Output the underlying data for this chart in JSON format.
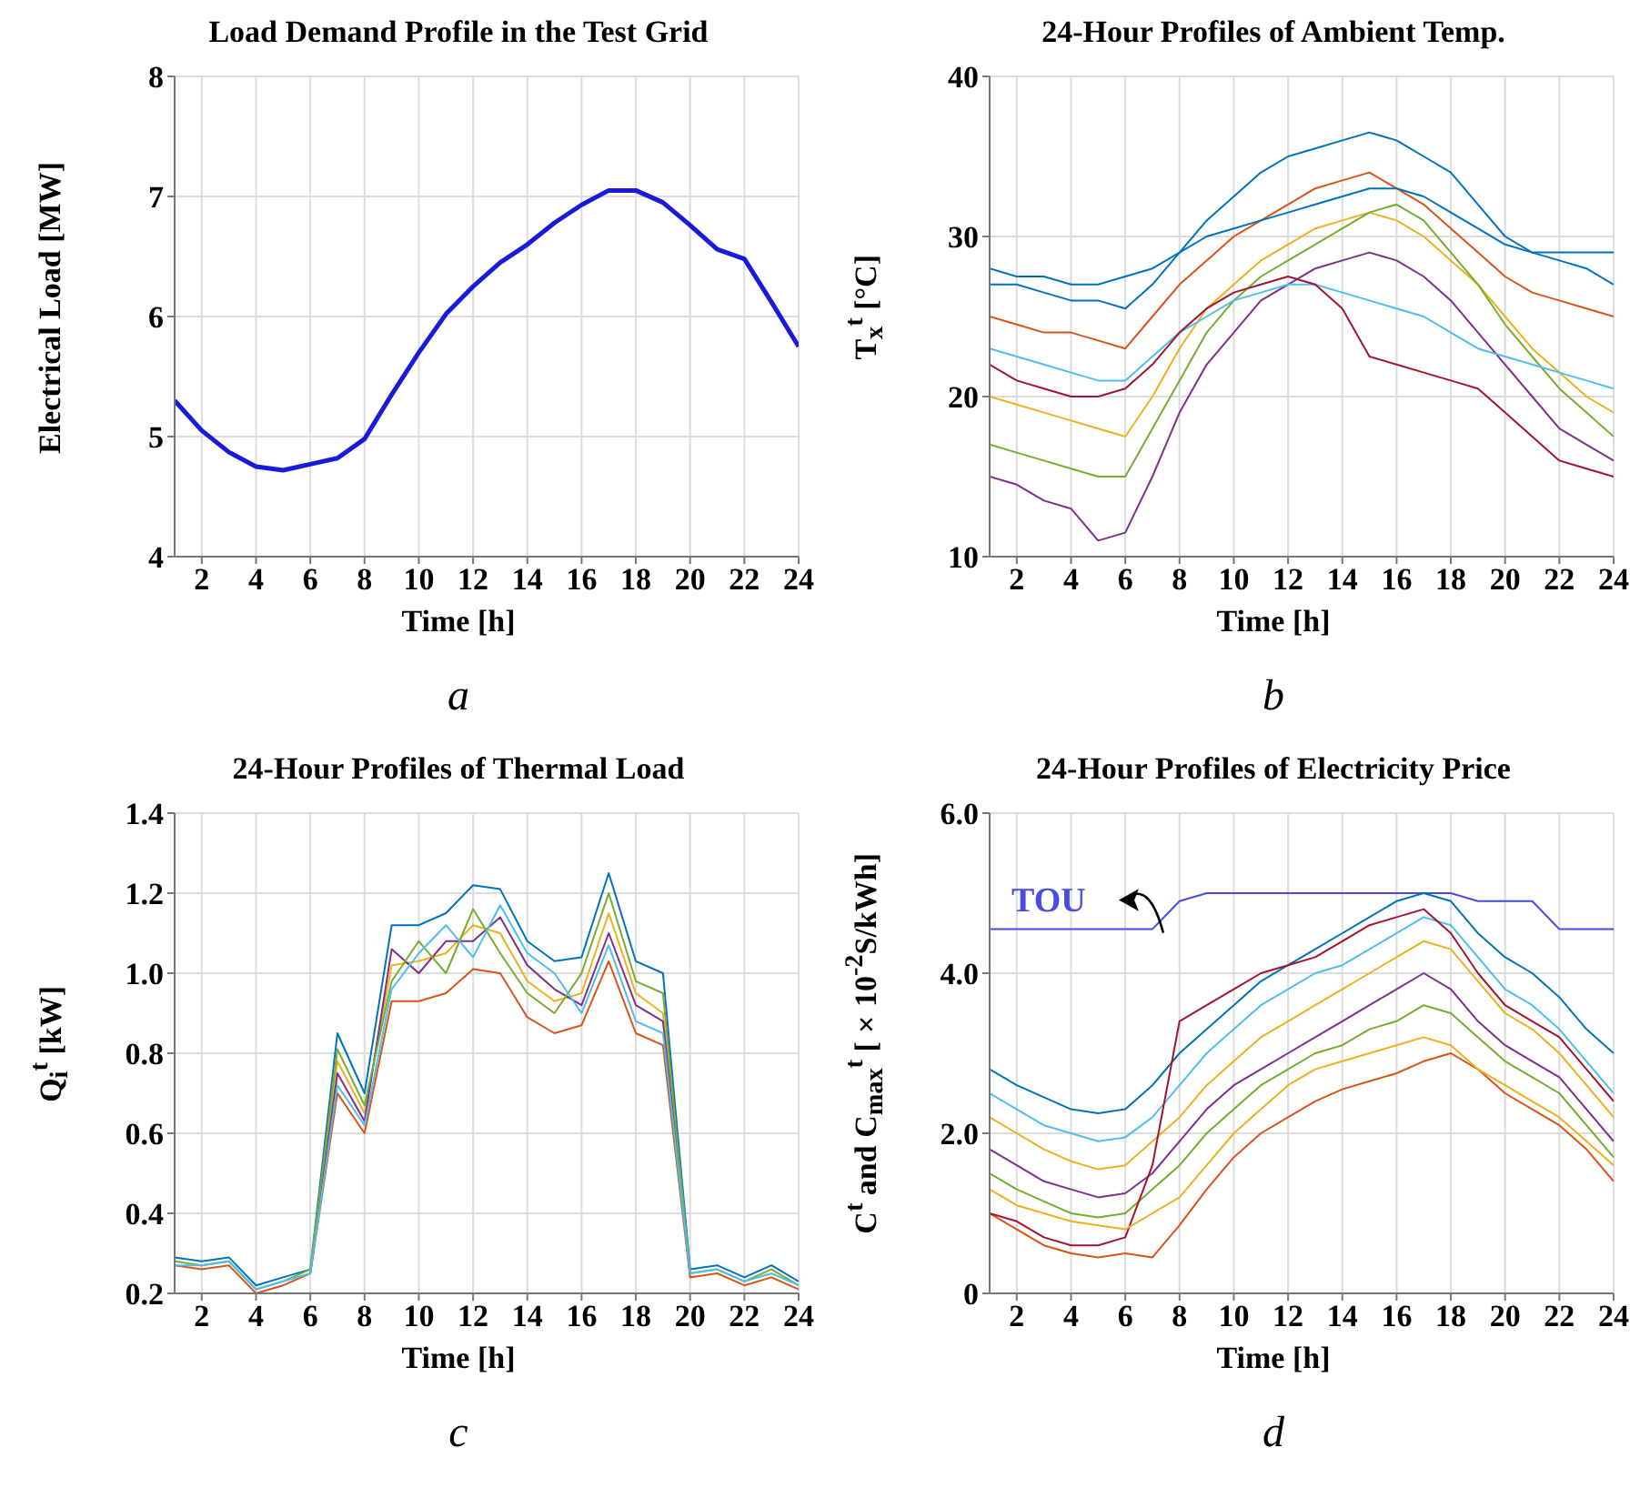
{
  "chart_data": [
    {
      "type": "line",
      "title": "Load Demand Profile in the Test Grid",
      "xlabel": "Time [h]",
      "ylabel": "Electrical Load [MW]",
      "annotations": [
        "a"
      ],
      "grid": true,
      "x": [
        1,
        2,
        3,
        4,
        5,
        6,
        7,
        8,
        9,
        10,
        11,
        12,
        13,
        14,
        15,
        16,
        17,
        18,
        19,
        20,
        21,
        22,
        23,
        24
      ],
      "xlim": [
        1,
        24
      ],
      "xticks": [
        2,
        4,
        6,
        8,
        10,
        12,
        14,
        16,
        18,
        20,
        22,
        24
      ],
      "ylim": [
        4,
        8
      ],
      "yticks": [
        4,
        5,
        6,
        7,
        8
      ],
      "series": [
        {
          "color": "#1a1adb",
          "values": [
            5.3,
            5.05,
            4.87,
            4.75,
            4.72,
            4.77,
            4.82,
            4.98,
            5.35,
            5.7,
            6.02,
            6.25,
            6.45,
            6.6,
            6.78,
            6.93,
            7.05,
            7.05,
            6.95,
            6.76,
            6.56,
            6.48,
            6.12,
            5.75
          ]
        }
      ]
    },
    {
      "type": "line",
      "title": "24-Hour Profiles of Ambient Temp.",
      "xlabel": "Time [h]",
      "ylabel": "T$_{x}$$^{t}$ [°C]",
      "annotations": [
        "b"
      ],
      "grid": true,
      "x": [
        1,
        2,
        3,
        4,
        5,
        6,
        7,
        8,
        9,
        10,
        11,
        12,
        13,
        14,
        15,
        16,
        17,
        18,
        19,
        20,
        21,
        22,
        23,
        24
      ],
      "xlim": [
        1,
        24
      ],
      "xticks": [
        2,
        4,
        6,
        8,
        10,
        12,
        14,
        16,
        18,
        20,
        22,
        24
      ],
      "ylim": [
        10,
        40
      ],
      "yticks": [
        10,
        20,
        30,
        40
      ],
      "series": [
        {
          "color": "#0072bd",
          "values": [
            27,
            27,
            26.5,
            26,
            26,
            25.5,
            27,
            29,
            31,
            32.5,
            34,
            35,
            35.5,
            36,
            36.5,
            36,
            35,
            34,
            32,
            30,
            29,
            28.5,
            28,
            27
          ]
        },
        {
          "color": "#d95319",
          "values": [
            25,
            24.5,
            24,
            24,
            23.5,
            23,
            25,
            27,
            28.5,
            30,
            31,
            32,
            33,
            33.5,
            34,
            33,
            32,
            30.5,
            29,
            27.5,
            26.5,
            26,
            25.5,
            25
          ]
        },
        {
          "color": "#edb120",
          "values": [
            20,
            19.5,
            19,
            18.5,
            18,
            17.5,
            20,
            23,
            25.5,
            27,
            28.5,
            29.5,
            30.5,
            31,
            31.5,
            31,
            30,
            28.5,
            27,
            25,
            23,
            21.5,
            20,
            19
          ]
        },
        {
          "color": "#7e2f8e",
          "values": [
            15,
            14.5,
            13.5,
            13,
            11,
            11.5,
            15,
            19,
            22,
            24,
            26,
            27,
            28,
            28.5,
            29,
            28.5,
            27.5,
            26,
            24,
            22,
            20,
            18,
            17,
            16
          ]
        },
        {
          "color": "#77ac30",
          "values": [
            17,
            16.5,
            16,
            15.5,
            15,
            15,
            18,
            21,
            24,
            26,
            27.5,
            28.5,
            29.5,
            30.5,
            31.5,
            32,
            31,
            29,
            27,
            24.5,
            22.5,
            20.5,
            19,
            17.5
          ]
        },
        {
          "color": "#4dbeee",
          "values": [
            23,
            22.5,
            22,
            21.5,
            21,
            21,
            22.5,
            24,
            25,
            26,
            26.5,
            27,
            27,
            26.5,
            26,
            25.5,
            25,
            24,
            23,
            22.5,
            22,
            21.5,
            21,
            20.5
          ]
        },
        {
          "color": "#a2142f",
          "values": [
            22,
            21,
            20.5,
            20,
            20,
            20.5,
            22,
            24,
            25.5,
            26.5,
            27,
            27.5,
            27,
            25.5,
            22.5,
            22,
            21.5,
            21,
            20.5,
            19,
            17.5,
            16,
            15.5,
            15
          ]
        },
        {
          "color": "#0072bd",
          "values": [
            28,
            27.5,
            27.5,
            27,
            27,
            27.5,
            28,
            29,
            30,
            30.5,
            31,
            31.5,
            32,
            32.5,
            33,
            33,
            32.5,
            31.5,
            30.5,
            29.5,
            29,
            29,
            29,
            29
          ]
        }
      ]
    },
    {
      "type": "line",
      "title": "24-Hour Profiles of Thermal Load",
      "xlabel": "Time [h]",
      "ylabel": "Q$_{i}$$^{t}$ [kW]",
      "annotations": [
        "c"
      ],
      "grid": true,
      "x": [
        1,
        2,
        3,
        4,
        5,
        6,
        7,
        8,
        9,
        10,
        11,
        12,
        13,
        14,
        15,
        16,
        17,
        18,
        19,
        20,
        21,
        22,
        23,
        24
      ],
      "xlim": [
        1,
        24
      ],
      "xticks": [
        2,
        4,
        6,
        8,
        10,
        12,
        14,
        16,
        18,
        20,
        22,
        24
      ],
      "ylim": [
        0.2,
        1.4
      ],
      "yticks": [
        0.2,
        0.4,
        0.6,
        0.8,
        {
          "value": 1,
          "label": "1.0"
        },
        1.2,
        1.4
      ],
      "series": [
        {
          "color": "#0072bd",
          "values": [
            0.29,
            0.28,
            0.29,
            0.22,
            0.24,
            0.26,
            0.85,
            0.7,
            1.12,
            1.12,
            1.15,
            1.22,
            1.21,
            1.08,
            1.03,
            1.04,
            1.25,
            1.03,
            1.0,
            0.26,
            0.27,
            0.24,
            0.27,
            0.23
          ]
        },
        {
          "color": "#d95319",
          "values": [
            0.27,
            0.26,
            0.27,
            0.2,
            0.22,
            0.25,
            0.7,
            0.6,
            0.93,
            0.93,
            0.95,
            1.01,
            1.0,
            0.89,
            0.85,
            0.87,
            1.03,
            0.85,
            0.82,
            0.24,
            0.25,
            0.22,
            0.24,
            0.21
          ]
        },
        {
          "color": "#edb120",
          "values": [
            null,
            null,
            null,
            null,
            null,
            0.26,
            0.78,
            0.65,
            1.02,
            1.03,
            1.05,
            1.12,
            1.1,
            0.98,
            0.93,
            0.95,
            1.15,
            0.95,
            0.9,
            0.25,
            null,
            null,
            null,
            null
          ]
        },
        {
          "color": "#7e2f8e",
          "values": [
            null,
            null,
            null,
            null,
            null,
            0.25,
            0.75,
            0.63,
            1.06,
            1.0,
            1.08,
            1.08,
            1.14,
            1.02,
            0.96,
            0.92,
            1.1,
            0.92,
            0.88,
            0.25,
            null,
            null,
            null,
            null
          ]
        },
        {
          "color": "#77ac30",
          "values": [
            0.28,
            0.27,
            0.28,
            0.21,
            0.23,
            0.26,
            0.81,
            0.67,
            0.98,
            1.08,
            1.0,
            1.16,
            1.05,
            0.95,
            0.9,
            1.0,
            1.2,
            0.98,
            0.95,
            0.25,
            0.26,
            0.23,
            0.26,
            0.22
          ]
        },
        {
          "color": "#4dbeee",
          "values": [
            0.27,
            0.27,
            0.28,
            0.21,
            0.23,
            0.25,
            0.72,
            0.62,
            0.96,
            1.05,
            1.12,
            1.04,
            1.17,
            1.05,
            1.0,
            0.9,
            1.07,
            0.88,
            0.85,
            0.25,
            0.26,
            0.23,
            0.25,
            0.22
          ]
        }
      ]
    },
    {
      "type": "line",
      "title": "24-Hour Profiles of Electricity Price",
      "xlabel": "Time [h]",
      "ylabel": "C$^{t}$ and C$_{max}$$^{t}$ [×10$^{-2}$S/kWh]",
      "annotations": [
        "d"
      ],
      "grid": true,
      "x": [
        1,
        2,
        3,
        4,
        5,
        6,
        7,
        8,
        9,
        10,
        11,
        12,
        13,
        14,
        15,
        16,
        17,
        18,
        19,
        20,
        21,
        22,
        23,
        24
      ],
      "xlim": [
        1,
        24
      ],
      "xticks": [
        2,
        4,
        6,
        8,
        10,
        12,
        14,
        16,
        18,
        20,
        22,
        24
      ],
      "ylim": [
        0,
        6
      ],
      "yticks": [
        0,
        {
          "value": 2,
          "label": "2.0"
        },
        {
          "value": 4,
          "label": "4.0"
        },
        {
          "value": 6,
          "label": "6.0"
        }
      ],
      "series": [
        {
          "name": "TOU",
          "color": "#4a4ae6",
          "values": [
            4.55,
            4.55,
            4.55,
            4.55,
            4.55,
            4.55,
            4.55,
            4.9,
            5.0,
            5.0,
            5.0,
            5.0,
            5.0,
            5.0,
            5.0,
            5.0,
            5.0,
            5.0,
            4.9,
            4.9,
            4.9,
            4.55,
            4.55,
            4.55
          ]
        },
        {
          "color": "#0072bd",
          "values": [
            2.8,
            2.6,
            2.45,
            2.3,
            2.25,
            2.3,
            2.6,
            3.0,
            3.3,
            3.6,
            3.9,
            4.1,
            4.3,
            4.5,
            4.7,
            4.9,
            5.0,
            4.9,
            4.5,
            4.2,
            4.0,
            3.7,
            3.3,
            3.0
          ]
        },
        {
          "color": "#d95319",
          "values": [
            1.0,
            0.8,
            0.6,
            0.5,
            0.45,
            0.5,
            0.45,
            0.85,
            1.3,
            1.7,
            2.0,
            2.2,
            2.4,
            2.55,
            2.65,
            2.75,
            2.9,
            3.0,
            2.8,
            2.5,
            2.3,
            2.1,
            1.8,
            1.4
          ]
        },
        {
          "color": "#edb120",
          "values": [
            2.2,
            2.0,
            1.8,
            1.65,
            1.55,
            1.6,
            1.9,
            2.2,
            2.6,
            2.9,
            3.2,
            3.4,
            3.6,
            3.8,
            4.0,
            4.2,
            4.4,
            4.3,
            3.9,
            3.5,
            3.3,
            3.0,
            2.6,
            2.2
          ]
        },
        {
          "color": "#7e2f8e",
          "values": [
            1.8,
            1.6,
            1.4,
            1.3,
            1.2,
            1.25,
            1.5,
            1.9,
            2.3,
            2.6,
            2.8,
            3.0,
            3.2,
            3.4,
            3.6,
            3.8,
            4.0,
            3.8,
            3.4,
            3.1,
            2.9,
            2.7,
            2.3,
            1.9
          ]
        },
        {
          "color": "#77ac30",
          "values": [
            1.5,
            1.3,
            1.15,
            1.0,
            0.95,
            1.0,
            1.3,
            1.6,
            2.0,
            2.3,
            2.6,
            2.8,
            3.0,
            3.1,
            3.3,
            3.4,
            3.6,
            3.5,
            3.2,
            2.9,
            2.7,
            2.5,
            2.1,
            1.7
          ]
        },
        {
          "color": "#4dbeee",
          "values": [
            2.5,
            2.3,
            2.1,
            2.0,
            1.9,
            1.95,
            2.2,
            2.6,
            3.0,
            3.3,
            3.6,
            3.8,
            4.0,
            4.1,
            4.3,
            4.5,
            4.7,
            4.6,
            4.2,
            3.8,
            3.6,
            3.3,
            2.9,
            2.5
          ]
        },
        {
          "color": "#a2142f",
          "values": [
            1.0,
            0.9,
            0.7,
            0.6,
            0.6,
            0.7,
            1.6,
            3.4,
            3.6,
            3.8,
            4.0,
            4.1,
            4.2,
            4.4,
            4.6,
            4.7,
            4.8,
            4.5,
            4.0,
            3.6,
            3.4,
            3.2,
            2.8,
            2.4
          ]
        },
        {
          "color": "#edb120",
          "values": [
            1.3,
            1.1,
            1.0,
            0.9,
            0.85,
            0.8,
            1.0,
            1.2,
            1.6,
            2.0,
            2.3,
            2.6,
            2.8,
            2.9,
            3.0,
            3.1,
            3.2,
            3.1,
            2.8,
            2.6,
            2.4,
            2.2,
            1.9,
            1.6
          ]
        }
      ]
    }
  ]
}
